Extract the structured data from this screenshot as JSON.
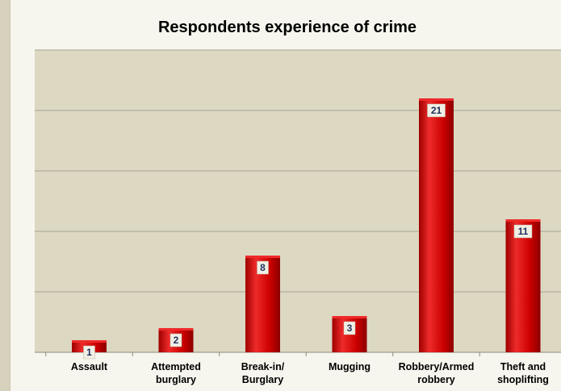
{
  "chart_data": {
    "type": "bar",
    "title": "Respondents experience of crime",
    "categories": [
      [
        "Assault"
      ],
      [
        "Attempted",
        "burglary"
      ],
      [
        "Break-in/",
        "Burglary"
      ],
      [
        "Mugging"
      ],
      [
        "Robbery/Armed",
        "robbery"
      ],
      [
        "Theft and",
        "shoplifting"
      ]
    ],
    "values": [
      1,
      2,
      8,
      3,
      21,
      11
    ],
    "ylim": [
      0,
      25
    ],
    "grid": true,
    "colors": {
      "bar": "#cc0000",
      "bar_light": "#ee2a2a",
      "bar_dark": "#9e0000",
      "plot_bg": "#ddd8c2",
      "gridline": "#a7a595",
      "data_label_bg": "#f1efe4",
      "data_label_text": "#1f2f5c"
    }
  }
}
